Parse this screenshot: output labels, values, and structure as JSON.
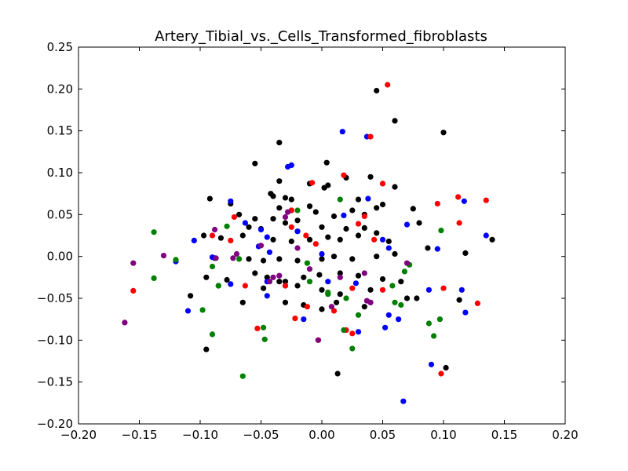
{
  "chart_data": {
    "type": "scatter",
    "title": "Artery_Tibial_vs._Cells_Transformed_fibroblasts",
    "xlabel": "",
    "ylabel": "",
    "xlim": [
      -0.2,
      0.2
    ],
    "ylim": [
      -0.2,
      0.25
    ],
    "xticks": [
      "−0.20",
      "−0.15",
      "−0.10",
      "−0.05",
      "0.00",
      "0.05",
      "0.10",
      "0.15",
      "0.20"
    ],
    "yticks": [
      "−0.20",
      "−0.15",
      "−0.10",
      "−0.05",
      "0.00",
      "0.05",
      "0.10",
      "0.15",
      "0.20",
      "0.25"
    ],
    "grid": false,
    "legend": false,
    "colors": {
      "black": "#000000",
      "blue": "#0000ff",
      "red": "#ff0000",
      "green": "#008000",
      "purple": "#800080"
    },
    "series": [
      {
        "color": "#000000",
        "points": [
          [
            0.045,
            0.198
          ],
          [
            0.06,
            0.162
          ],
          [
            0.1,
            0.148
          ],
          [
            -0.035,
            0.136
          ],
          [
            -0.055,
            0.111
          ],
          [
            0.004,
            0.112
          ],
          [
            0.02,
            0.094
          ],
          [
            0.04,
            0.095
          ],
          [
            -0.035,
            0.09
          ],
          [
            -0.01,
            0.087
          ],
          [
            0.002,
            0.082
          ],
          [
            0.005,
            0.085
          ],
          [
            -0.092,
            0.069
          ],
          [
            -0.075,
            0.063
          ],
          [
            -0.042,
            0.075
          ],
          [
            -0.04,
            0.072
          ],
          [
            -0.03,
            0.07
          ],
          [
            -0.025,
            0.068
          ],
          [
            0.03,
            0.068
          ],
          [
            0.05,
            0.062
          ],
          [
            0.06,
            0.083
          ],
          [
            -0.035,
            0.058
          ],
          [
            -0.025,
            0.055
          ],
          [
            -0.01,
            0.06
          ],
          [
            -0.005,
            0.053
          ],
          [
            0.025,
            0.055
          ],
          [
            0.045,
            0.058
          ],
          [
            -0.068,
            0.05
          ],
          [
            -0.055,
            0.045
          ],
          [
            -0.04,
            0.045
          ],
          [
            -0.03,
            0.04
          ],
          [
            -0.02,
            0.043
          ],
          [
            0.01,
            0.048
          ],
          [
            0.035,
            0.05
          ],
          [
            0.075,
            0.057
          ],
          [
            -0.06,
            0.035
          ],
          [
            -0.05,
            0.033
          ],
          [
            -0.02,
            0.03
          ],
          [
            0.0,
            0.035
          ],
          [
            0.02,
            0.033
          ],
          [
            0.035,
            0.034
          ],
          [
            0.08,
            0.04
          ],
          [
            -0.097,
            0.025
          ],
          [
            -0.083,
            0.022
          ],
          [
            -0.065,
            0.025
          ],
          [
            -0.04,
            0.02
          ],
          [
            -0.025,
            0.018
          ],
          [
            -0.01,
            0.02
          ],
          [
            0.005,
            0.023
          ],
          [
            0.015,
            0.02
          ],
          [
            0.03,
            0.025
          ],
          [
            0.045,
            0.028
          ],
          [
            0.055,
            0.018
          ],
          [
            0.14,
            0.02
          ],
          [
            -0.088,
            -0.002
          ],
          [
            -0.06,
            -0.003
          ],
          [
            -0.048,
            -0.005
          ],
          [
            -0.035,
            -0.003
          ],
          [
            -0.02,
            -0.005
          ],
          [
            0.0,
            -0.003
          ],
          [
            0.01,
            0.0
          ],
          [
            0.025,
            -0.003
          ],
          [
            0.045,
            0.0
          ],
          [
            0.06,
            0.003
          ],
          [
            0.087,
            0.01
          ],
          [
            0.118,
            0.004
          ],
          [
            -0.095,
            -0.025
          ],
          [
            -0.078,
            -0.028
          ],
          [
            -0.055,
            -0.02
          ],
          [
            -0.045,
            -0.025
          ],
          [
            -0.03,
            -0.03
          ],
          [
            -0.015,
            -0.025
          ],
          [
            -0.002,
            -0.022
          ],
          [
            0.015,
            -0.02
          ],
          [
            0.03,
            -0.023
          ],
          [
            0.05,
            -0.027
          ],
          [
            0.065,
            -0.03
          ],
          [
            -0.108,
            -0.047
          ],
          [
            -0.085,
            -0.035
          ],
          [
            -0.065,
            -0.055
          ],
          [
            -0.048,
            -0.038
          ],
          [
            -0.035,
            -0.03
          ],
          [
            -0.02,
            -0.035
          ],
          [
            0.0,
            -0.04
          ],
          [
            0.015,
            -0.045
          ],
          [
            0.04,
            -0.04
          ],
          [
            0.07,
            -0.05
          ],
          [
            0.078,
            -0.05
          ],
          [
            0.113,
            -0.052
          ],
          [
            -0.03,
            -0.055
          ],
          [
            -0.015,
            -0.058
          ],
          [
            0.0,
            -0.063
          ],
          [
            0.012,
            -0.055
          ],
          [
            0.035,
            -0.06
          ],
          [
            -0.095,
            -0.111
          ],
          [
            0.013,
            -0.14
          ],
          [
            0.102,
            -0.133
          ]
        ]
      },
      {
        "color": "#0000ff",
        "points": [
          [
            0.017,
            0.149
          ],
          [
            0.037,
            0.143
          ],
          [
            -0.025,
            0.109
          ],
          [
            -0.028,
            0.107
          ],
          [
            -0.075,
            0.066
          ],
          [
            0.038,
            0.069
          ],
          [
            0.117,
            0.066
          ],
          [
            -0.063,
            0.04
          ],
          [
            -0.05,
            0.032
          ],
          [
            0.018,
            0.049
          ],
          [
            0.07,
            0.038
          ],
          [
            -0.105,
            0.019
          ],
          [
            -0.045,
            0.023
          ],
          [
            -0.02,
            0.03
          ],
          [
            0.05,
            0.02
          ],
          [
            0.135,
            0.025
          ],
          [
            -0.12,
            -0.006
          ],
          [
            -0.09,
            -0.001
          ],
          [
            -0.052,
            0.012
          ],
          [
            -0.043,
            0.005
          ],
          [
            0.0,
            0.003
          ],
          [
            0.055,
            0.01
          ],
          [
            0.095,
            0.009
          ],
          [
            -0.075,
            -0.033
          ],
          [
            -0.045,
            -0.03
          ],
          [
            -0.03,
            -0.035
          ],
          [
            0.005,
            -0.03
          ],
          [
            0.028,
            -0.032
          ],
          [
            0.088,
            -0.04
          ],
          [
            -0.11,
            -0.065
          ],
          [
            -0.045,
            -0.047
          ],
          [
            0.04,
            -0.055
          ],
          [
            0.115,
            -0.04
          ],
          [
            0.118,
            -0.067
          ],
          [
            -0.015,
            -0.075
          ],
          [
            0.052,
            -0.085
          ],
          [
            0.063,
            -0.075
          ],
          [
            0.09,
            -0.129
          ],
          [
            0.067,
            -0.173
          ],
          [
            0.03,
            -0.09
          ],
          [
            0.055,
            -0.07
          ]
        ]
      },
      {
        "color": "#ff0000",
        "points": [
          [
            0.054,
            0.205
          ],
          [
            0.04,
            0.143
          ],
          [
            0.018,
            0.097
          ],
          [
            -0.008,
            0.088
          ],
          [
            0.05,
            0.087
          ],
          [
            0.095,
            0.063
          ],
          [
            0.112,
            0.071
          ],
          [
            0.135,
            0.067
          ],
          [
            -0.072,
            0.047
          ],
          [
            -0.025,
            0.055
          ],
          [
            0.035,
            0.048
          ],
          [
            0.113,
            0.04
          ],
          [
            -0.09,
            0.025
          ],
          [
            -0.075,
            0.019
          ],
          [
            -0.013,
            0.025
          ],
          [
            -0.025,
            0.035
          ],
          [
            0.03,
            0.039
          ],
          [
            0.043,
            0.02
          ],
          [
            -0.005,
            0.015
          ],
          [
            -0.155,
            -0.041
          ],
          [
            -0.063,
            -0.035
          ],
          [
            -0.03,
            -0.035
          ],
          [
            0.025,
            -0.038
          ],
          [
            0.1,
            -0.038
          ],
          [
            0.128,
            -0.056
          ],
          [
            -0.012,
            -0.06
          ],
          [
            0.01,
            -0.065
          ],
          [
            -0.053,
            -0.086
          ],
          [
            -0.022,
            -0.074
          ],
          [
            0.02,
            -0.088
          ],
          [
            0.025,
            -0.092
          ],
          [
            -0.003,
            -0.1
          ],
          [
            0.098,
            -0.14
          ],
          [
            0.05,
            -0.04
          ]
        ]
      },
      {
        "color": "#008000",
        "points": [
          [
            -0.138,
            0.029
          ],
          [
            0.015,
            0.068
          ],
          [
            -0.02,
            0.055
          ],
          [
            -0.078,
            0.036
          ],
          [
            0.098,
            0.031
          ],
          [
            -0.12,
            -0.004
          ],
          [
            -0.068,
            -0.003
          ],
          [
            -0.012,
            -0.008
          ],
          [
            0.072,
            -0.01
          ],
          [
            -0.138,
            -0.026
          ],
          [
            -0.09,
            -0.012
          ],
          [
            -0.01,
            -0.03
          ],
          [
            0.068,
            -0.018
          ],
          [
            -0.085,
            -0.035
          ],
          [
            0.005,
            -0.045
          ],
          [
            0.058,
            -0.035
          ],
          [
            0.02,
            -0.05
          ],
          [
            0.06,
            -0.055
          ],
          [
            0.065,
            -0.058
          ],
          [
            -0.098,
            -0.064
          ],
          [
            -0.09,
            -0.093
          ],
          [
            -0.048,
            -0.085
          ],
          [
            -0.047,
            -0.099
          ],
          [
            0.018,
            -0.088
          ],
          [
            0.088,
            -0.08
          ],
          [
            0.097,
            -0.075
          ],
          [
            0.092,
            -0.095
          ],
          [
            0.025,
            -0.11
          ],
          [
            -0.065,
            -0.143
          ],
          [
            0.03,
            -0.07
          ],
          [
            0.005,
            -0.043
          ]
        ]
      },
      {
        "color": "#800080",
        "points": [
          [
            -0.155,
            -0.008
          ],
          [
            -0.13,
            0.001
          ],
          [
            -0.088,
            0.032
          ],
          [
            -0.073,
            -0.002
          ],
          [
            -0.07,
            0.003
          ],
          [
            -0.087,
            -0.002
          ],
          [
            -0.05,
            0.013
          ],
          [
            -0.03,
            0.047
          ],
          [
            -0.028,
            0.053
          ],
          [
            -0.02,
            0.01
          ],
          [
            -0.01,
            -0.015
          ],
          [
            -0.035,
            -0.023
          ],
          [
            -0.04,
            -0.025
          ],
          [
            -0.043,
            -0.03
          ],
          [
            0.015,
            -0.025
          ],
          [
            0.035,
            -0.02
          ],
          [
            0.07,
            -0.008
          ],
          [
            0.04,
            -0.055
          ],
          [
            -0.003,
            -0.1
          ],
          [
            -0.162,
            -0.079
          ],
          [
            0.008,
            -0.06
          ],
          [
            0.037,
            -0.053
          ]
        ]
      }
    ]
  }
}
